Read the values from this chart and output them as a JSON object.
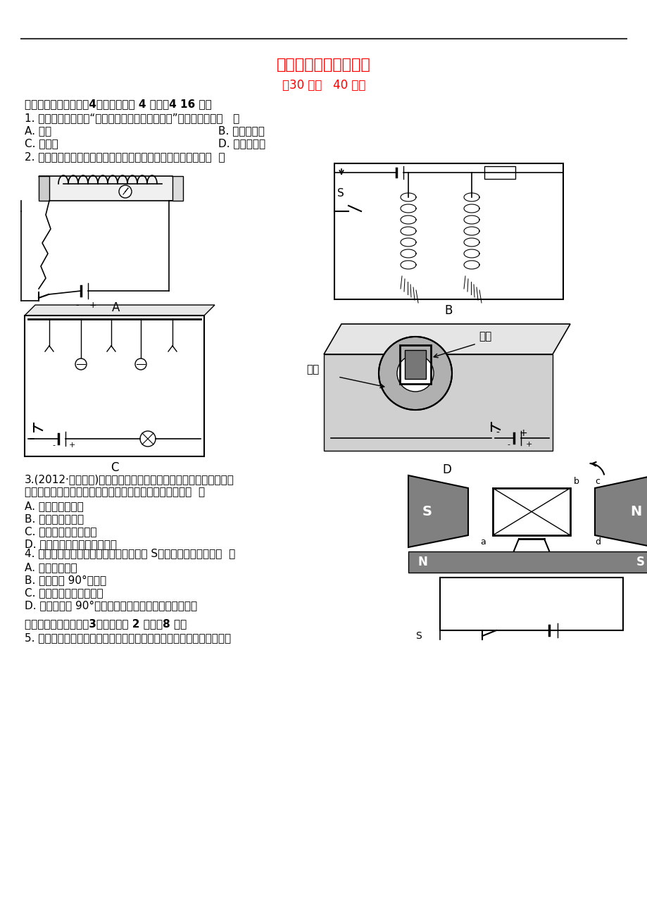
{
  "page_bg": "#ffffff",
  "title": "知能提升作业（十五）",
  "subtitle": "（30 分钟   40 分）",
  "title_color": "#ff0000",
  "subtitle_color": "#ff0000",
  "line_color": "#333333",
  "text_color": "#000000",
  "section1_header": "一、选择题（本大题共4小题，每小题 4 分，共4 16 分）",
  "q1": "1. 下列设备中，利用“通电导体在磁场中受力运动”原理工作的是（   ）",
  "q1_a": "A. 电铃",
  "q1_b": "B. 电磁继电器",
  "q1_c": "C. 电动机",
  "q1_d": "D. 电磁起重机",
  "q2": "2. 如图所示的几个实验，演示磁场对通电导体有力的作用的是（  ）",
  "label_A": "A",
  "label_B": "B",
  "label_C": "C",
  "label_D": "D",
  "label_xianquan": "线圈",
  "label_citi": "磁体",
  "q3_line1": "3.(2012·茂名中考)如图所示是直流电动机的模型，闭合开关后线圈",
  "q3_line2": "顺时针转动。现要线圈逆时针转动，下列方法中可行的是（  ）",
  "q3_a": "A. 只改变电流方向",
  "q3_b": "B. 只改变电流大小",
  "q3_c": "C. 换用磁性更强的磁铁",
  "q3_d": "D. 对换磁极同时改变电流方向",
  "q4_text": "4. 如图所示的线圈放入磁场中，闭合开关 S，下列说法正确的是（  ）",
  "q4_a": "A. 线圈不能转动",
  "q4_b": "B. 线圈转动 90°后停止",
  "q4_c": "C. 线圈会不停地转动下去",
  "q4_d": "D. 线圈转动到 90°的位置后摆动几下，最后慢慢停下来",
  "section2_header": "二、填空题（本大题共3小题，每空 2 分，共8 分）",
  "q5_text": "5. 如图为我们实验室所用电流表的内部结构示意图。当接入电路，有电"
}
